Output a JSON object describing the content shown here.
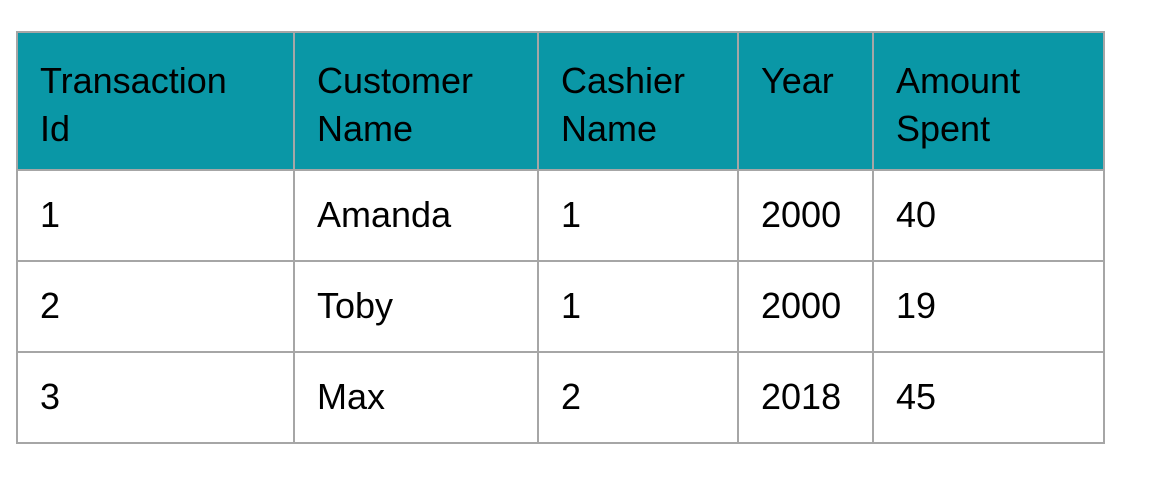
{
  "table": {
    "header_color": "#0a97a6",
    "headers": [
      [
        "Transaction",
        "Id"
      ],
      [
        "Customer",
        "Name"
      ],
      [
        "Cashier",
        "Name"
      ],
      [
        "Year",
        ""
      ],
      [
        "Amount",
        "Spent"
      ]
    ],
    "rows": [
      [
        "1",
        "Amanda",
        "1",
        "2000",
        "40"
      ],
      [
        "2",
        "Toby",
        "1",
        "2000",
        "19"
      ],
      [
        "3",
        "Max",
        "2",
        "2018",
        "45"
      ]
    ]
  }
}
